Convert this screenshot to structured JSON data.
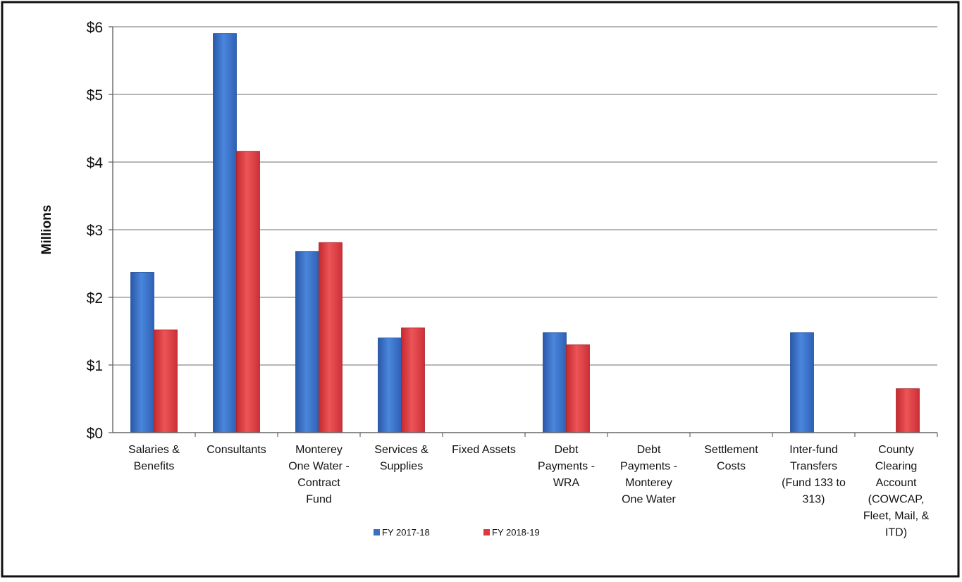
{
  "chart_data": {
    "type": "bar",
    "title": "",
    "xlabel": "",
    "ylabel": "Millions",
    "ylim": [
      0,
      6
    ],
    "y_ticks": [
      {
        "value": 0,
        "label": "$0"
      },
      {
        "value": 1,
        "label": "$1"
      },
      {
        "value": 2,
        "label": "$2"
      },
      {
        "value": 3,
        "label": "$3"
      },
      {
        "value": 4,
        "label": "$4"
      },
      {
        "value": 5,
        "label": "$5"
      },
      {
        "value": 6,
        "label": "$6"
      }
    ],
    "grid": true,
    "legend_position": "bottom",
    "categories": [
      [
        "Salaries &",
        "Benefits"
      ],
      [
        "Consultants"
      ],
      [
        "Monterey",
        "One Water -",
        "Contract",
        "Fund"
      ],
      [
        "Services &",
        "Supplies"
      ],
      [
        "Fixed Assets"
      ],
      [
        "Debt",
        "Payments -",
        "WRA"
      ],
      [
        "Debt",
        "Payments -",
        "Monterey",
        "One Water"
      ],
      [
        "Settlement",
        "Costs"
      ],
      [
        "Inter-fund",
        "Transfers",
        "(Fund 133 to",
        "313)"
      ],
      [
        "County",
        "Clearing",
        "Account",
        "(COWCAP,",
        "Fleet, Mail, &",
        "ITD)"
      ]
    ],
    "series": [
      {
        "name": "FY 2017-18",
        "color": "#3a6fc4",
        "values": [
          2.37,
          5.9,
          2.68,
          1.4,
          0,
          1.48,
          0,
          0,
          1.48,
          0
        ]
      },
      {
        "name": "FY 2018-19",
        "color": "#dc3a3f",
        "values": [
          1.52,
          4.16,
          2.81,
          1.55,
          0,
          1.3,
          0,
          0,
          0,
          0.65
        ]
      }
    ]
  }
}
